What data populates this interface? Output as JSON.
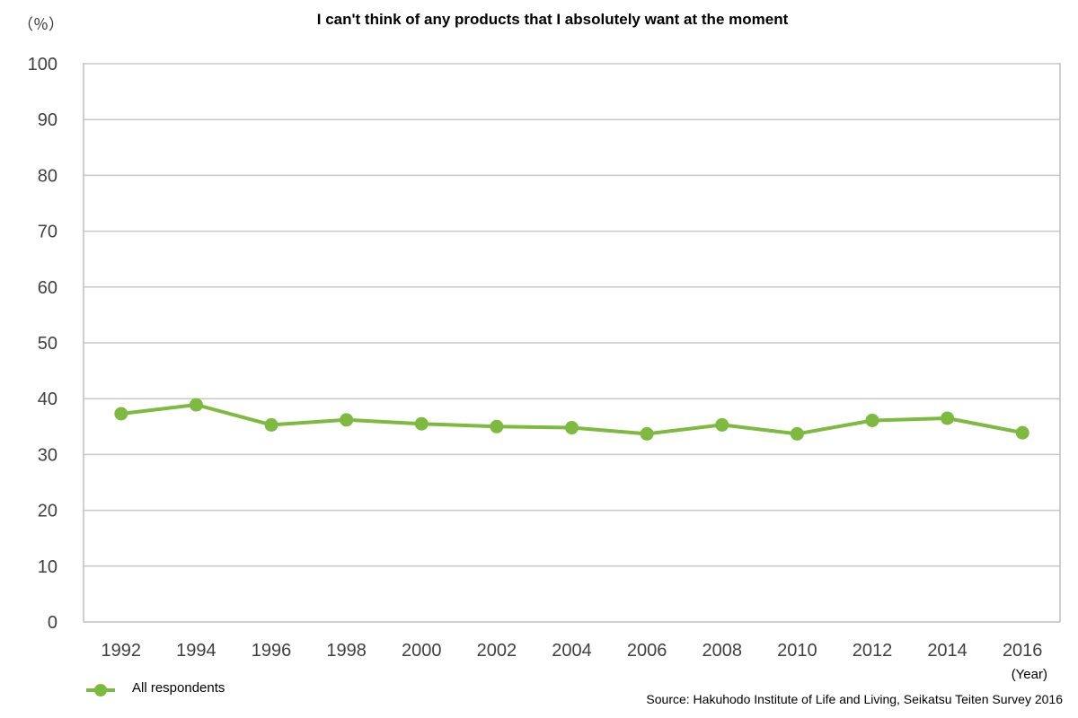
{
  "chart_data": {
    "type": "line",
    "title": "I can't think of any products that I absolutely want at the moment",
    "y_unit_label": "（％）",
    "x_unit_label": "(Year)",
    "ylim": [
      0,
      100
    ],
    "yticks": [
      0,
      10,
      20,
      30,
      40,
      50,
      60,
      70,
      80,
      90,
      100
    ],
    "categories": [
      "1992",
      "1994",
      "1996",
      "1998",
      "2000",
      "2002",
      "2004",
      "2006",
      "2008",
      "2010",
      "2012",
      "2014",
      "2016"
    ],
    "series": [
      {
        "name": "All respondents",
        "color": "#7dba3f",
        "values": [
          37.3,
          38.9,
          35.3,
          36.2,
          35.5,
          35.0,
          34.8,
          33.7,
          35.3,
          33.7,
          36.1,
          36.5,
          33.9
        ]
      }
    ],
    "grid": true,
    "legend_position": "bottom-left",
    "source": "Source: Hakuhodo Institute of Life and Living, Seikatsu Teiten Survey 2016"
  }
}
